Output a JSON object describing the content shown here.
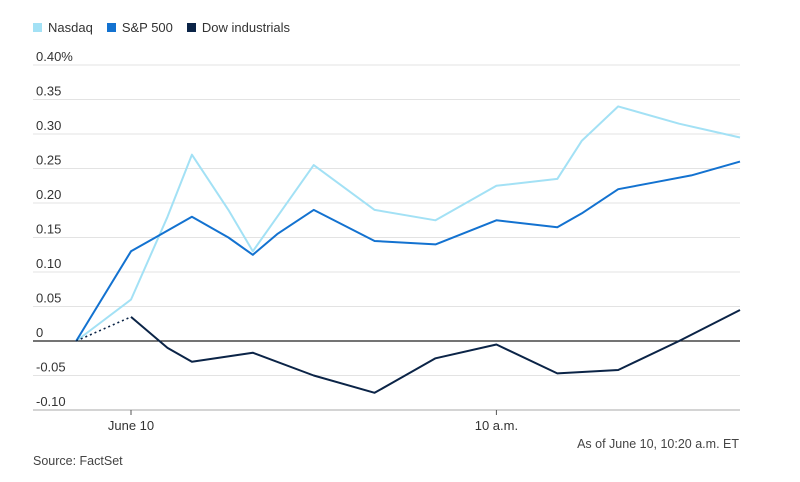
{
  "chart_data": {
    "type": "line",
    "x_labels": [
      {
        "at": 0,
        "label": "June 10"
      },
      {
        "at": 30,
        "label": "10 a.m."
      }
    ],
    "xlim": [
      -4.5,
      50
    ],
    "ylim": [
      -0.1,
      0.4
    ],
    "y_ticks": [
      {
        "value": 0.4,
        "label": "0.40%"
      },
      {
        "value": 0.35,
        "label": "0.35"
      },
      {
        "value": 0.3,
        "label": "0.30"
      },
      {
        "value": 0.25,
        "label": "0.25"
      },
      {
        "value": 0.2,
        "label": "0.20"
      },
      {
        "value": 0.15,
        "label": "0.15"
      },
      {
        "value": 0.1,
        "label": "0.10"
      },
      {
        "value": 0.05,
        "label": "0.05"
      },
      {
        "value": 0,
        "label": "0"
      },
      {
        "value": -0.05,
        "label": "-0.05"
      },
      {
        "value": -0.1,
        "label": "-0.10"
      }
    ],
    "series": [
      {
        "name": "Nasdaq",
        "color": "#a3e1f5",
        "points": [
          [
            -4.5,
            0
          ],
          [
            0,
            0.06
          ],
          [
            3,
            0.18
          ],
          [
            5,
            0.27
          ],
          [
            8,
            0.19
          ],
          [
            10,
            0.13
          ],
          [
            12,
            0.18
          ],
          [
            15,
            0.255
          ],
          [
            20,
            0.19
          ],
          [
            25,
            0.175
          ],
          [
            30,
            0.225
          ],
          [
            35,
            0.235
          ],
          [
            37,
            0.29
          ],
          [
            40,
            0.34
          ],
          [
            45,
            0.315
          ],
          [
            50,
            0.295
          ]
        ]
      },
      {
        "name": "S&P 500",
        "color": "#1372d0",
        "points": [
          [
            -4.5,
            0
          ],
          [
            0,
            0.13
          ],
          [
            2,
            0.15
          ],
          [
            5,
            0.18
          ],
          [
            8,
            0.15
          ],
          [
            10,
            0.125
          ],
          [
            12,
            0.155
          ],
          [
            15,
            0.19
          ],
          [
            20,
            0.145
          ],
          [
            25,
            0.14
          ],
          [
            30,
            0.175
          ],
          [
            35,
            0.165
          ],
          [
            37,
            0.185
          ],
          [
            40,
            0.22
          ],
          [
            43,
            0.23
          ],
          [
            46,
            0.24
          ],
          [
            50,
            0.26
          ]
        ]
      },
      {
        "name": "Dow industrials",
        "color": "#0b2447",
        "dotted_segment": [
          [
            -4.5,
            0
          ],
          [
            0,
            0.035
          ]
        ],
        "points": [
          [
            0,
            0.035
          ],
          [
            3,
            -0.01
          ],
          [
            5,
            -0.03
          ],
          [
            10,
            -0.017
          ],
          [
            15,
            -0.05
          ],
          [
            20,
            -0.075
          ],
          [
            25,
            -0.025
          ],
          [
            30,
            -0.005
          ],
          [
            35,
            -0.047
          ],
          [
            40,
            -0.042
          ],
          [
            45,
            0
          ],
          [
            50,
            0.045
          ]
        ]
      }
    ]
  },
  "footer": {
    "timestamp": "As of June 10, 10:20 a.m. ET",
    "source": "Source: FactSet"
  }
}
